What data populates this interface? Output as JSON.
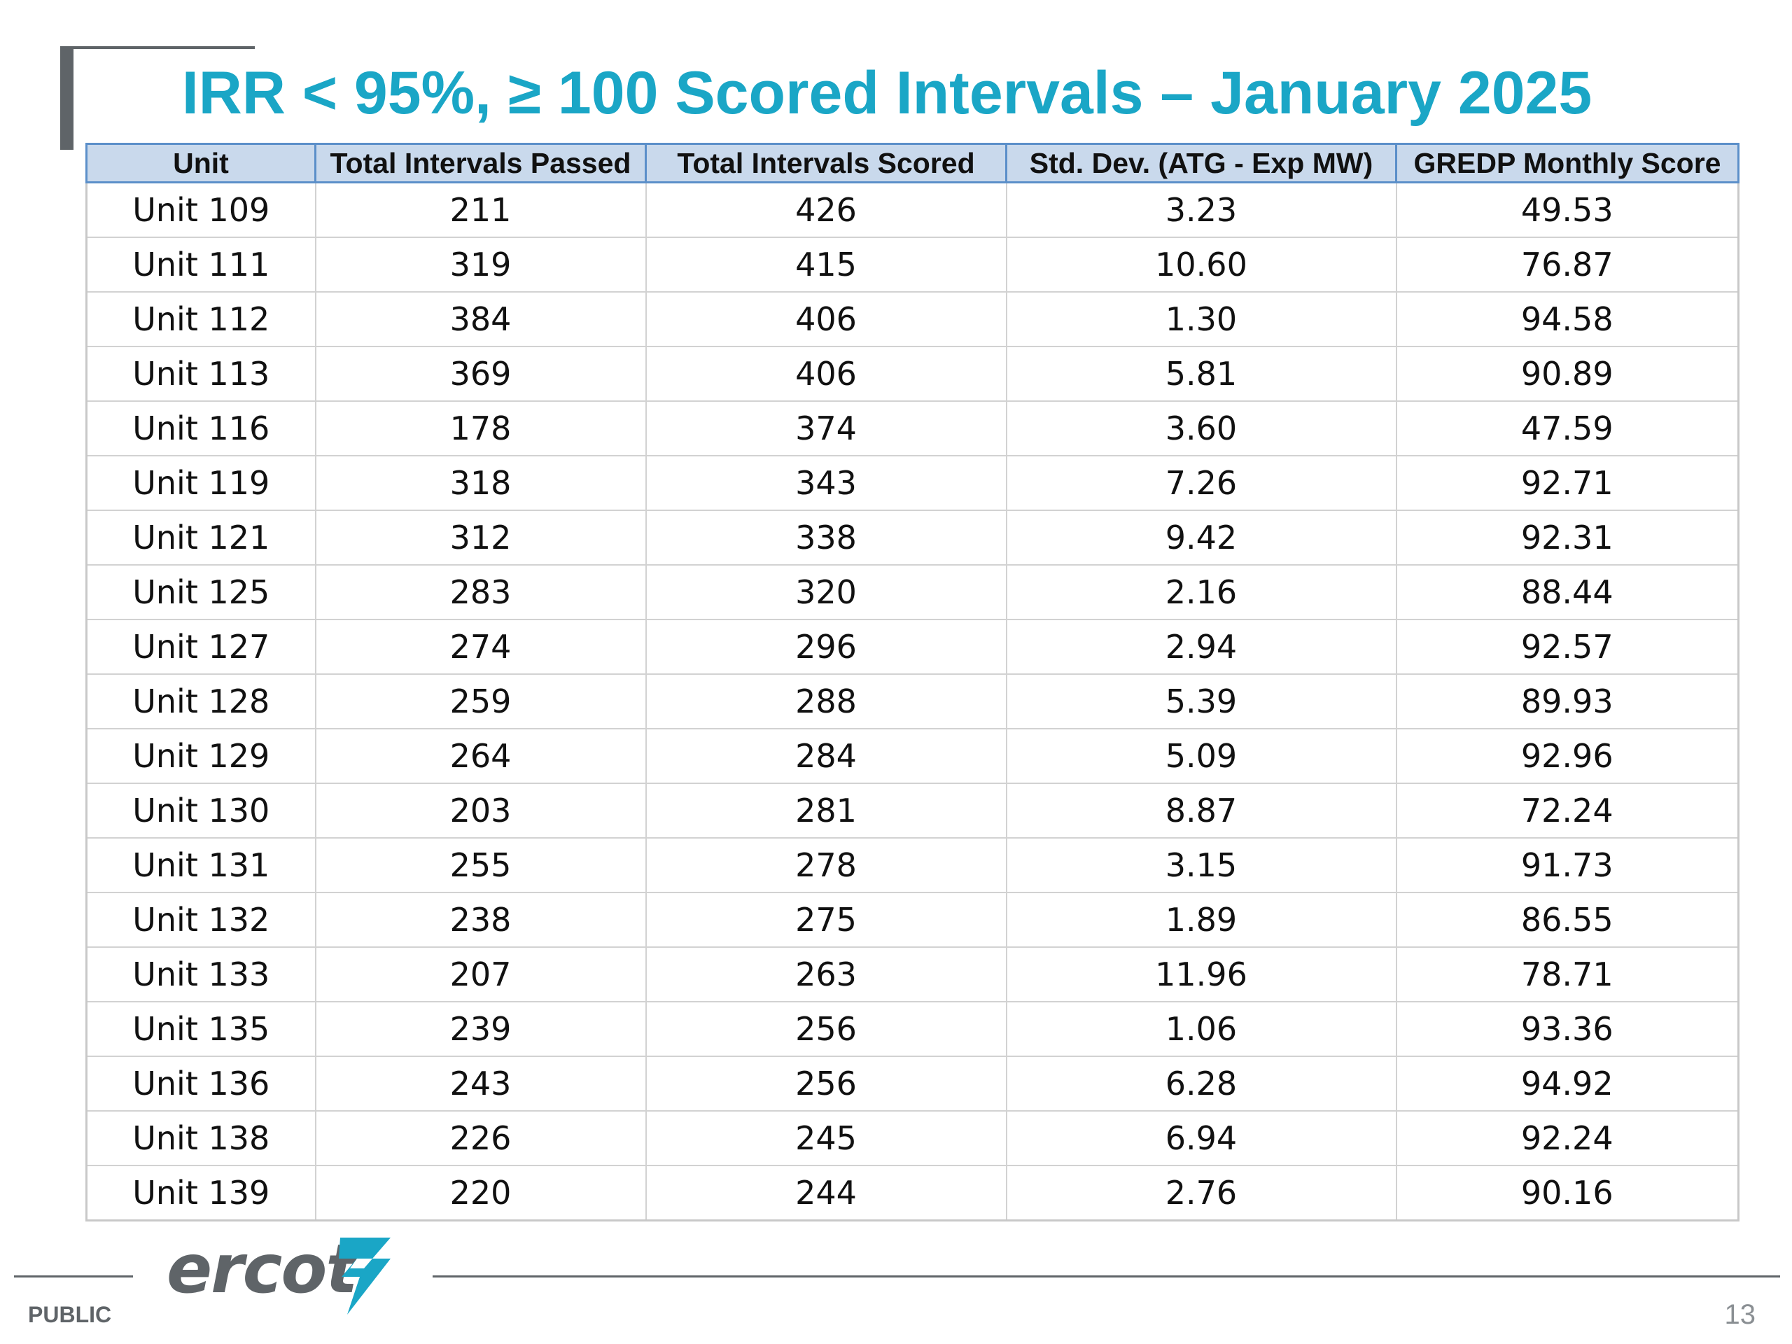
{
  "title": "IRR < 95%, ≥ 100 Scored Intervals – January 2025",
  "table": {
    "headers": [
      "Unit",
      "Total Intervals Passed",
      "Total Intervals Scored",
      "Std. Dev. (ATG - Exp MW)",
      "GREDP Monthly Score"
    ],
    "rows": [
      [
        "Unit 109",
        "211",
        "426",
        "3.23",
        "49.53"
      ],
      [
        "Unit 111",
        "319",
        "415",
        "10.60",
        "76.87"
      ],
      [
        "Unit 112",
        "384",
        "406",
        "1.30",
        "94.58"
      ],
      [
        "Unit 113",
        "369",
        "406",
        "5.81",
        "90.89"
      ],
      [
        "Unit 116",
        "178",
        "374",
        "3.60",
        "47.59"
      ],
      [
        "Unit 119",
        "318",
        "343",
        "7.26",
        "92.71"
      ],
      [
        "Unit 121",
        "312",
        "338",
        "9.42",
        "92.31"
      ],
      [
        "Unit 125",
        "283",
        "320",
        "2.16",
        "88.44"
      ],
      [
        "Unit 127",
        "274",
        "296",
        "2.94",
        "92.57"
      ],
      [
        "Unit 128",
        "259",
        "288",
        "5.39",
        "89.93"
      ],
      [
        "Unit 129",
        "264",
        "284",
        "5.09",
        "92.96"
      ],
      [
        "Unit 130",
        "203",
        "281",
        "8.87",
        "72.24"
      ],
      [
        "Unit 131",
        "255",
        "278",
        "3.15",
        "91.73"
      ],
      [
        "Unit 132",
        "238",
        "275",
        "1.89",
        "86.55"
      ],
      [
        "Unit 133",
        "207",
        "263",
        "11.96",
        "78.71"
      ],
      [
        "Unit 135",
        "239",
        "256",
        "1.06",
        "93.36"
      ],
      [
        "Unit 136",
        "243",
        "256",
        "6.28",
        "94.92"
      ],
      [
        "Unit 138",
        "226",
        "245",
        "6.94",
        "92.24"
      ],
      [
        "Unit 139",
        "220",
        "244",
        "2.76",
        "90.16"
      ]
    ]
  },
  "footer": {
    "logo_text": "ercot",
    "logo_icon": "ercot-lightning-mark-icon",
    "classification": "PUBLIC",
    "page_number": "13"
  },
  "colors": {
    "title": "#1aa6c6",
    "header_fill": "#c9d9ec",
    "header_border": "#5b8fc9",
    "logo_gray": "#5f6468",
    "logo_mark": "#1aa6c6"
  }
}
